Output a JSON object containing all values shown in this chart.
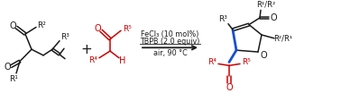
{
  "bg_color": "#ffffff",
  "black": "#1a1a1a",
  "red": "#cc0000",
  "blue": "#1a4fcc",
  "fig_width": 3.78,
  "fig_height": 1.04,
  "dpi": 100,
  "conditions_line1": "FeCl₃ (10 mol%)",
  "conditions_line2": "TBPB (2.0 equiv)",
  "conditions_line3": "air, 90 °C"
}
